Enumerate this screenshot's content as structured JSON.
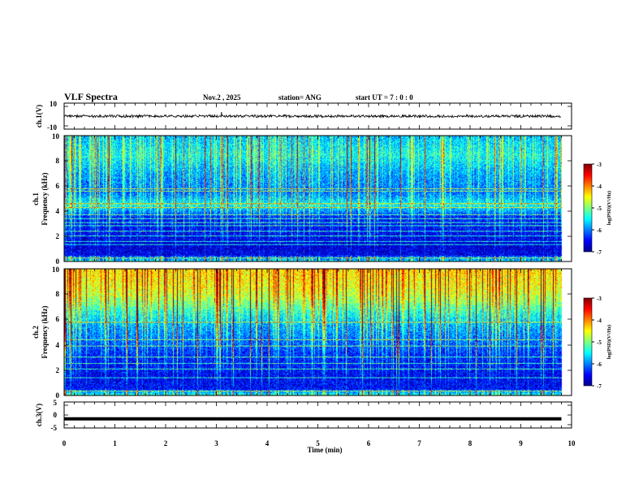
{
  "header": {
    "title": "VLF Spectra",
    "date": "Nov.2  , 2025",
    "station": "station= ANG",
    "start": "start  UT  =   7 : 0  : 0"
  },
  "chart_data": [
    {
      "id": "ch1-waveform",
      "type": "line",
      "ylabel": "ch.1(V)",
      "ylim": [
        -10,
        10
      ],
      "yticks": [
        "10",
        "-10"
      ],
      "x": [
        0,
        9.8
      ],
      "baseline": 0,
      "noise_amplitude": 1,
      "spike_at_min": 3.1,
      "spike_value": 3
    },
    {
      "id": "ch1-spectrogram",
      "type": "heatmap",
      "ylabel_channel": "ch.1",
      "ylabel": "Frequency  (kHz)",
      "ylim": [
        0,
        10
      ],
      "yticks": [
        "0",
        "2",
        "4",
        "6",
        "8",
        "10"
      ],
      "data_xmax": 9.8,
      "colorbar": {
        "ticks": [
          "-3",
          "-4",
          "-5",
          "-6",
          "-7"
        ],
        "label": "log(PSD)(V²/Hz)",
        "range": [
          -7,
          -3
        ]
      },
      "level_by_frequency_khz": [
        [
          0,
          -5.8
        ],
        [
          0.5,
          -6.6
        ],
        [
          1.2,
          -6.7
        ],
        [
          2.2,
          -6.6
        ],
        [
          3.5,
          -6.5
        ],
        [
          4.5,
          -5.6
        ],
        [
          5.5,
          -6.2
        ],
        [
          7,
          -6.0
        ],
        [
          8.5,
          -5.6
        ],
        [
          10,
          -5.9
        ]
      ],
      "lines_khz": [
        0.25,
        1.3,
        1.6,
        2.0,
        2.4,
        2.8,
        3.1,
        3.4,
        3.7,
        4.3,
        4.6,
        5.6,
        5.8
      ]
    },
    {
      "id": "ch2-spectrogram",
      "type": "heatmap",
      "ylabel_channel": "ch.2",
      "ylabel": "Frequency  (kHz)",
      "ylim": [
        0,
        10
      ],
      "yticks": [
        "0",
        "2",
        "4",
        "6",
        "8",
        "10"
      ],
      "data_xmax": 9.8,
      "colorbar": {
        "ticks": [
          "-3",
          "-4",
          "-5",
          "-6",
          "-7"
        ],
        "label": "log(PSD)(V²/Hz)",
        "range": [
          -7,
          -3
        ]
      },
      "level_by_frequency_khz": [
        [
          0,
          -5.6
        ],
        [
          0.5,
          -6.5
        ],
        [
          1.5,
          -6.6
        ],
        [
          3,
          -6.5
        ],
        [
          4.5,
          -6.2
        ],
        [
          5.5,
          -6.0
        ],
        [
          6.5,
          -5.6
        ],
        [
          7.5,
          -5.1
        ],
        [
          8.5,
          -4.8
        ],
        [
          10,
          -4.6
        ]
      ],
      "lines_khz": [
        0.3,
        1.4,
        2.1,
        2.5,
        3.0,
        3.9,
        4.4,
        5.8
      ]
    },
    {
      "id": "ch3-waveform",
      "type": "line",
      "ylabel": "ch.3(V)",
      "ylim": [
        -5,
        5
      ],
      "yticks": [
        "5",
        "0",
        "-5"
      ],
      "x": [
        0,
        9.8
      ],
      "baseline": -1.5
    }
  ],
  "xaxis": {
    "label": "Time  (min)",
    "range": [
      0,
      10
    ],
    "ticks": [
      "0",
      "1",
      "2",
      "3",
      "4",
      "5",
      "6",
      "7",
      "8",
      "9",
      "10"
    ]
  }
}
